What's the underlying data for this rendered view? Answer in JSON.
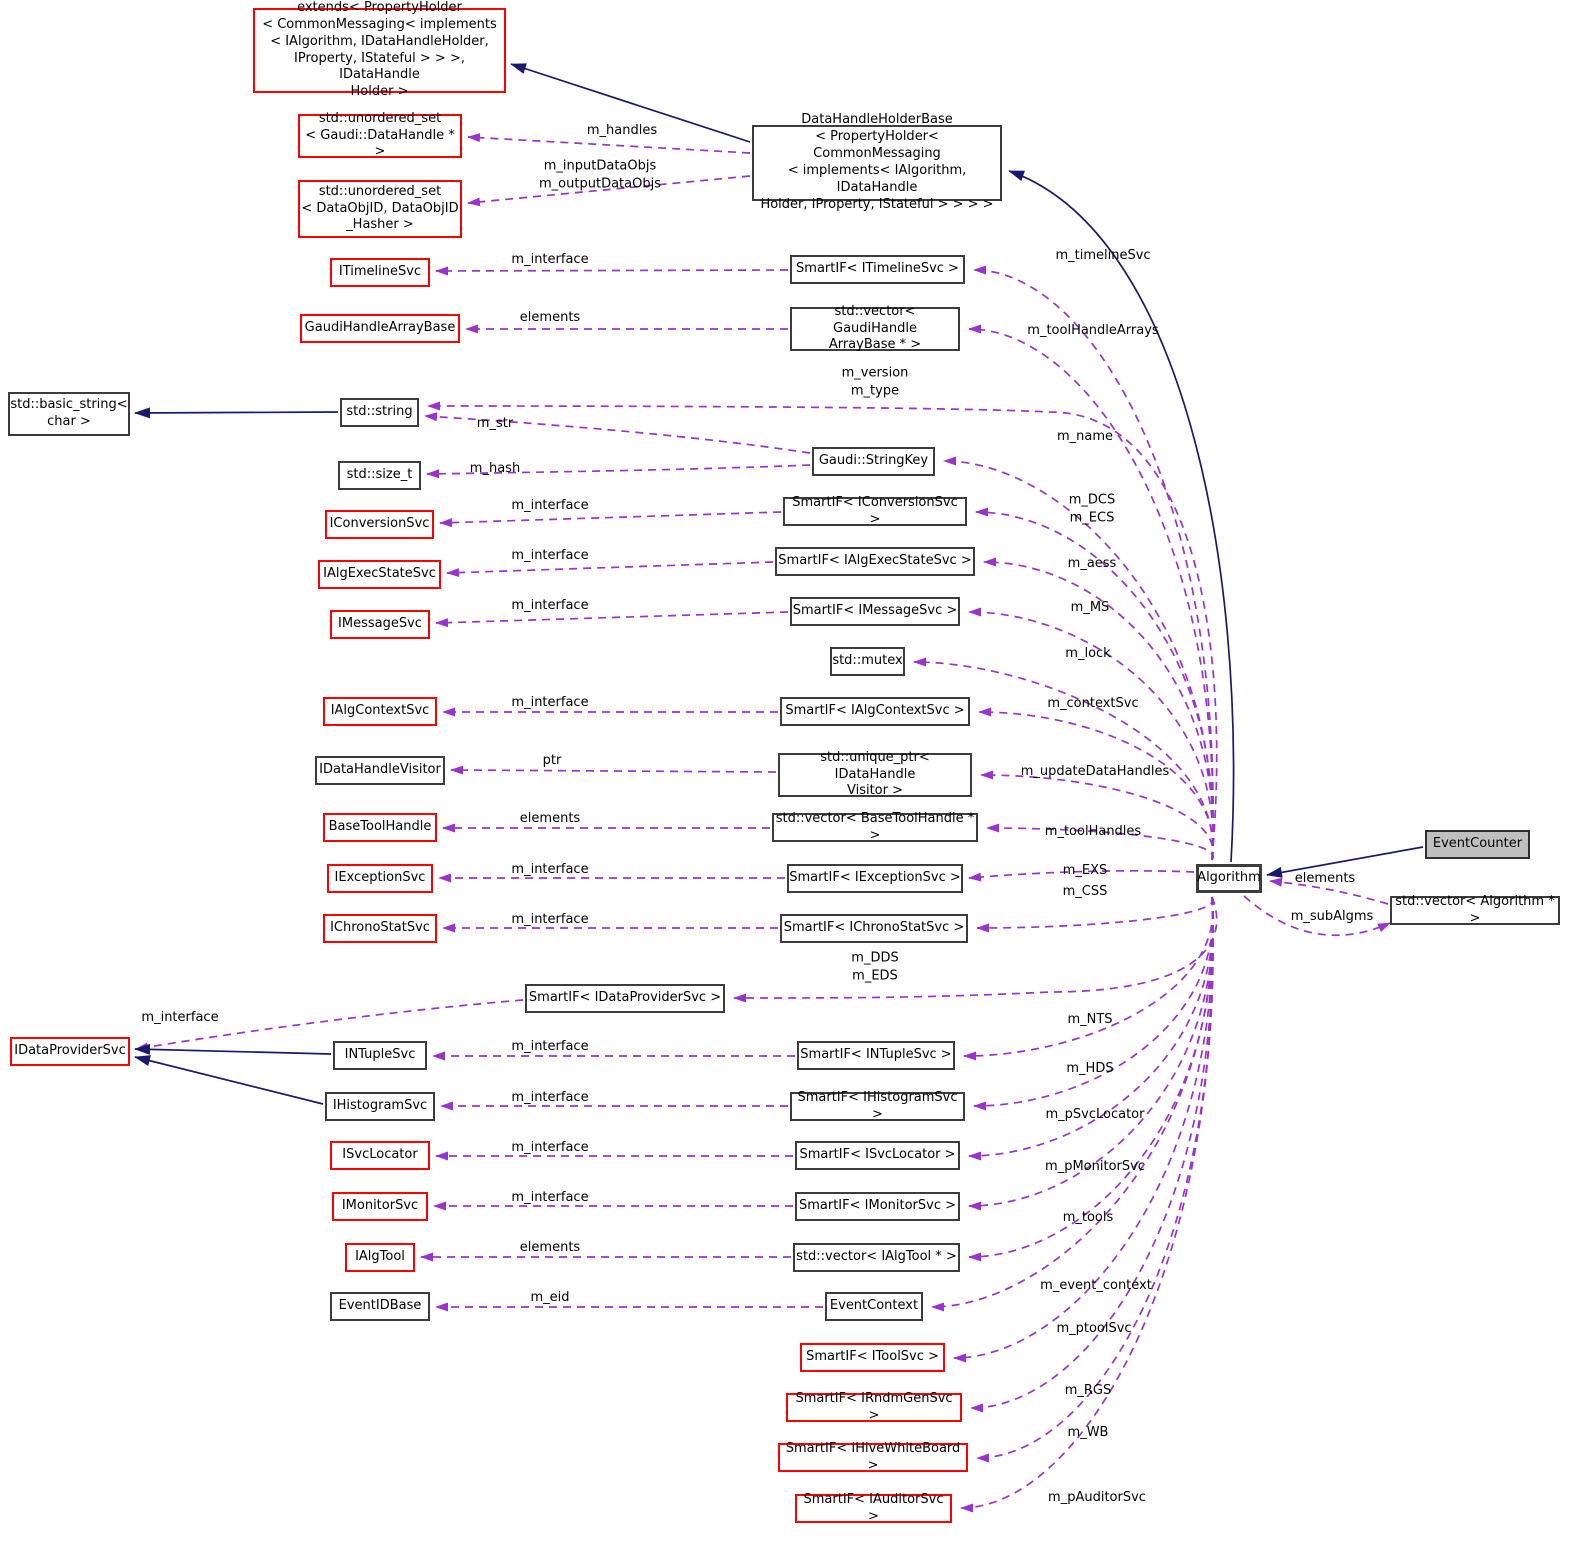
{
  "colors": {
    "usage_edge": "#9a32cd",
    "inheritance_edge": "#191970",
    "red_node_border": "#ff0000",
    "plain_node_border": "#3c3c3c",
    "highlight_node_fill": "#bfbfbf"
  },
  "nodes": [
    {
      "id": "extends",
      "style": "red",
      "label": "extends< PropertyHolder\n< CommonMessaging< implements\n< IAlgorithm, IDataHandleHolder,\nIProperty, IStateful > > >, IDataHandle\nHolder >"
    },
    {
      "id": "dhhb",
      "style": "plain",
      "label": "DataHandleHolderBase\n< PropertyHolder< CommonMessaging\n< implements< IAlgorithm, IDataHandle\nHolder, IProperty, IStateful > > > >"
    },
    {
      "id": "uset_handle",
      "style": "red",
      "label": "std::unordered_set\n< Gaudi::DataHandle * >"
    },
    {
      "id": "uset_dataobj",
      "style": "red",
      "label": "std::unordered_set\n< DataObjID, DataObjID\n_Hasher >"
    },
    {
      "id": "itimelinesvc",
      "style": "red",
      "label": "ITimelineSvc"
    },
    {
      "id": "gaudihandlearraybase",
      "style": "red",
      "label": "GaudiHandleArrayBase"
    },
    {
      "id": "basic_string",
      "style": "plain",
      "label": "std::basic_string<\nchar >"
    },
    {
      "id": "string",
      "style": "plain",
      "label": "std::string"
    },
    {
      "id": "size_t",
      "style": "plain",
      "label": "std::size_t"
    },
    {
      "id": "iconversionsvc",
      "style": "red",
      "label": "IConversionSvc"
    },
    {
      "id": "ialgexecstatesvc",
      "style": "red",
      "label": "IAlgExecStateSvc"
    },
    {
      "id": "imessagesvc",
      "style": "red",
      "label": "IMessageSvc"
    },
    {
      "id": "ialgcontextsvc",
      "style": "red",
      "label": "IAlgContextSvc"
    },
    {
      "id": "idatahandlevisitor",
      "style": "plain",
      "label": "IDataHandleVisitor"
    },
    {
      "id": "basetoolhandle",
      "style": "red",
      "label": "BaseToolHandle"
    },
    {
      "id": "iexceptionsvc",
      "style": "red",
      "label": "IExceptionSvc"
    },
    {
      "id": "ichronostatsvc",
      "style": "red",
      "label": "IChronoStatSvc"
    },
    {
      "id": "idataprovidersvc",
      "style": "red",
      "label": "IDataProviderSvc"
    },
    {
      "id": "intuplesvc",
      "style": "plain",
      "label": "INTupleSvc"
    },
    {
      "id": "ihistogramsvc",
      "style": "plain",
      "label": "IHistogramSvc"
    },
    {
      "id": "isvclocator",
      "style": "red",
      "label": "ISvcLocator"
    },
    {
      "id": "imonitorsvc",
      "style": "red",
      "label": "IMonitorSvc"
    },
    {
      "id": "ialgtool",
      "style": "red",
      "label": "IAlgTool"
    },
    {
      "id": "eventidbase",
      "style": "plain",
      "label": "EventIDBase"
    },
    {
      "id": "sif_timeline",
      "style": "plain",
      "label": "SmartIF< ITimelineSvc >"
    },
    {
      "id": "vec_ghab",
      "style": "plain",
      "label": "std::vector< GaudiHandle\nArrayBase * >"
    },
    {
      "id": "stringkey",
      "style": "plain",
      "label": "Gaudi::StringKey"
    },
    {
      "id": "sif_conv",
      "style": "plain",
      "label": "SmartIF< IConversionSvc >"
    },
    {
      "id": "sif_algexec",
      "style": "plain",
      "label": "SmartIF< IAlgExecStateSvc >"
    },
    {
      "id": "sif_msg",
      "style": "plain",
      "label": "SmartIF< IMessageSvc >"
    },
    {
      "id": "mutex",
      "style": "plain",
      "label": "std::mutex"
    },
    {
      "id": "sif_algctx",
      "style": "plain",
      "label": "SmartIF< IAlgContextSvc >"
    },
    {
      "id": "uptr_idhv",
      "style": "plain",
      "label": "std::unique_ptr< IDataHandle\nVisitor >"
    },
    {
      "id": "vec_bth",
      "style": "plain",
      "label": "std::vector< BaseToolHandle * >"
    },
    {
      "id": "sif_exc",
      "style": "plain",
      "label": "SmartIF< IExceptionSvc >"
    },
    {
      "id": "sif_chrono",
      "style": "plain",
      "label": "SmartIF< IChronoStatSvc >"
    },
    {
      "id": "sif_dps",
      "style": "plain",
      "label": "SmartIF< IDataProviderSvc >"
    },
    {
      "id": "sif_ntuple",
      "style": "plain",
      "label": "SmartIF< INTupleSvc >"
    },
    {
      "id": "sif_histo",
      "style": "plain",
      "label": "SmartIF< IHistogramSvc >"
    },
    {
      "id": "sif_svcloc",
      "style": "plain",
      "label": "SmartIF< ISvcLocator >"
    },
    {
      "id": "sif_mon",
      "style": "plain",
      "label": "SmartIF< IMonitorSvc >"
    },
    {
      "id": "vec_algtool",
      "style": "plain",
      "label": "std::vector< IAlgTool * >"
    },
    {
      "id": "eventctx",
      "style": "plain",
      "label": "EventContext"
    },
    {
      "id": "sif_tool",
      "style": "red",
      "label": "SmartIF< IToolSvc >"
    },
    {
      "id": "sif_rndm",
      "style": "red",
      "label": "SmartIF< IRndmGenSvc >"
    },
    {
      "id": "sif_hive",
      "style": "red",
      "label": "SmartIF< IHiveWhiteBoard >"
    },
    {
      "id": "sif_aud",
      "style": "red",
      "label": "SmartIF< IAuditorSvc >"
    },
    {
      "id": "algorithm",
      "style": "bold",
      "label": "Algorithm"
    },
    {
      "id": "eventcounter",
      "style": "gray",
      "label": "EventCounter"
    },
    {
      "id": "vec_alg",
      "style": "plain",
      "label": "std::vector< Algorithm * >"
    }
  ],
  "edges": [
    {
      "from": "dhhb",
      "to": "uset_handle",
      "kind": "usage",
      "label": "m_handles"
    },
    {
      "from": "dhhb",
      "to": "uset_dataobj",
      "kind": "usage",
      "label": "m_inputDataObjs\nm_outputDataObjs"
    },
    {
      "from": "sif_timeline",
      "to": "itimelinesvc",
      "kind": "usage",
      "label": "m_interface"
    },
    {
      "from": "vec_ghab",
      "to": "gaudihandlearraybase",
      "kind": "usage",
      "label": "elements"
    },
    {
      "from": "algorithm",
      "to": "string",
      "kind": "usage",
      "label": "m_version\nm_type"
    },
    {
      "from": "stringkey",
      "to": "string",
      "kind": "usage",
      "label": "m_str"
    },
    {
      "from": "stringkey",
      "to": "size_t",
      "kind": "usage",
      "label": "m_hash"
    },
    {
      "from": "algorithm",
      "to": "stringkey",
      "kind": "usage",
      "label": "m_name"
    },
    {
      "from": "sif_conv",
      "to": "iconversionsvc",
      "kind": "usage",
      "label": "m_interface"
    },
    {
      "from": "algorithm",
      "to": "sif_conv",
      "kind": "usage",
      "label": "m_DCS\nm_ECS"
    },
    {
      "from": "sif_algexec",
      "to": "ialgexecstatesvc",
      "kind": "usage",
      "label": "m_interface"
    },
    {
      "from": "algorithm",
      "to": "sif_algexec",
      "kind": "usage",
      "label": "m_aess"
    },
    {
      "from": "sif_msg",
      "to": "imessagesvc",
      "kind": "usage",
      "label": "m_interface"
    },
    {
      "from": "algorithm",
      "to": "sif_msg",
      "kind": "usage",
      "label": "m_MS"
    },
    {
      "from": "algorithm",
      "to": "mutex",
      "kind": "usage",
      "label": "m_lock"
    },
    {
      "from": "sif_algctx",
      "to": "ialgcontextsvc",
      "kind": "usage",
      "label": "m_interface"
    },
    {
      "from": "algorithm",
      "to": "sif_algctx",
      "kind": "usage",
      "label": "m_contextSvc"
    },
    {
      "from": "uptr_idhv",
      "to": "idatahandlevisitor",
      "kind": "usage",
      "label": "ptr"
    },
    {
      "from": "algorithm",
      "to": "uptr_idhv",
      "kind": "usage",
      "label": "m_updateDataHandles"
    },
    {
      "from": "vec_bth",
      "to": "basetoolhandle",
      "kind": "usage",
      "label": "elements"
    },
    {
      "from": "algorithm",
      "to": "vec_bth",
      "kind": "usage",
      "label": "m_toolHandles"
    },
    {
      "from": "sif_exc",
      "to": "iexceptionsvc",
      "kind": "usage",
      "label": "m_interface"
    },
    {
      "from": "algorithm",
      "to": "sif_exc",
      "kind": "usage",
      "label": "m_EXS"
    },
    {
      "from": "sif_chrono",
      "to": "ichronostatsvc",
      "kind": "usage",
      "label": "m_interface"
    },
    {
      "from": "algorithm",
      "to": "sif_chrono",
      "kind": "usage",
      "label": "m_CSS"
    },
    {
      "from": "sif_dps",
      "to": "idataprovidersvc",
      "kind": "usage",
      "label": "m_interface"
    },
    {
      "from": "algorithm",
      "to": "sif_dps",
      "kind": "usage",
      "label": "m_DDS\nm_EDS"
    },
    {
      "from": "sif_ntuple",
      "to": "intuplesvc",
      "kind": "usage",
      "label": "m_interface"
    },
    {
      "from": "algorithm",
      "to": "sif_ntuple",
      "kind": "usage",
      "label": "m_NTS"
    },
    {
      "from": "sif_histo",
      "to": "ihistogramsvc",
      "kind": "usage",
      "label": "m_interface"
    },
    {
      "from": "algorithm",
      "to": "sif_histo",
      "kind": "usage",
      "label": "m_HDS"
    },
    {
      "from": "sif_svcloc",
      "to": "isvclocator",
      "kind": "usage",
      "label": "m_interface"
    },
    {
      "from": "algorithm",
      "to": "sif_svcloc",
      "kind": "usage",
      "label": "m_pSvcLocator"
    },
    {
      "from": "sif_mon",
      "to": "imonitorsvc",
      "kind": "usage",
      "label": "m_interface"
    },
    {
      "from": "algorithm",
      "to": "sif_mon",
      "kind": "usage",
      "label": "m_pMonitorSvc"
    },
    {
      "from": "vec_algtool",
      "to": "ialgtool",
      "kind": "usage",
      "label": "elements"
    },
    {
      "from": "algorithm",
      "to": "vec_algtool",
      "kind": "usage",
      "label": "m_tools"
    },
    {
      "from": "eventctx",
      "to": "eventidbase",
      "kind": "usage",
      "label": "m_eid"
    },
    {
      "from": "algorithm",
      "to": "eventctx",
      "kind": "usage",
      "label": "m_event_context"
    },
    {
      "from": "algorithm",
      "to": "sif_tool",
      "kind": "usage",
      "label": "m_ptoolSvc"
    },
    {
      "from": "algorithm",
      "to": "sif_rndm",
      "kind": "usage",
      "label": "m_RGS"
    },
    {
      "from": "algorithm",
      "to": "sif_hive",
      "kind": "usage",
      "label": "m_WB"
    },
    {
      "from": "algorithm",
      "to": "sif_aud",
      "kind": "usage",
      "label": "m_pAuditorSvc"
    },
    {
      "from": "vec_alg",
      "to": "algorithm",
      "kind": "usage",
      "label": "elements"
    },
    {
      "from": "algorithm",
      "to": "vec_alg",
      "kind": "usage",
      "label": "m_subAlgms"
    },
    {
      "from": "algorithm",
      "to": "sif_timeline",
      "kind": "usage",
      "label": "m_timelineSvc"
    },
    {
      "from": "algorithm",
      "to": "vec_ghab",
      "kind": "usage",
      "label": "m_toolHandleArrays"
    },
    {
      "from": "dhhb",
      "to": "extends",
      "kind": "inheritance",
      "label": ""
    },
    {
      "from": "algorithm",
      "to": "dhhb",
      "kind": "inheritance",
      "label": ""
    },
    {
      "from": "string",
      "to": "basic_string",
      "kind": "inheritance",
      "label": ""
    },
    {
      "from": "intuplesvc",
      "to": "idataprovidersvc",
      "kind": "inheritance",
      "label": ""
    },
    {
      "from": "ihistogramsvc",
      "to": "idataprovidersvc",
      "kind": "inheritance",
      "label": ""
    },
    {
      "from": "eventcounter",
      "to": "algorithm",
      "kind": "inheritance",
      "label": ""
    }
  ]
}
